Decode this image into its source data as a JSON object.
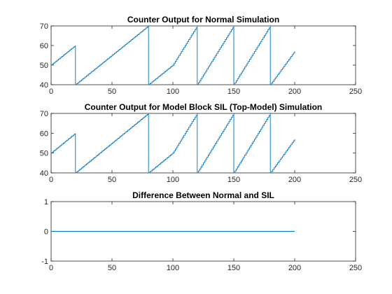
{
  "figure": {
    "background": "#ffffff",
    "axis_color": "#262626",
    "line_color": "#0072BD"
  },
  "chart_data": [
    {
      "type": "line",
      "title": "Counter Output for Normal Simulation",
      "xlabel": "",
      "ylabel": "",
      "xlim": [
        0,
        250
      ],
      "ylim": [
        40,
        70
      ],
      "xticks": [
        0,
        50,
        100,
        150,
        200,
        250
      ],
      "yticks": [
        40,
        50,
        60,
        70
      ],
      "grid": false,
      "legend": "none",
      "step": true,
      "series": [
        {
          "color": "#0072BD",
          "x": [
            0,
            20,
            20,
            80,
            80,
            100,
            120,
            120,
            150,
            150,
            180,
            180,
            200
          ],
          "y": [
            50,
            60,
            40,
            70,
            40,
            50,
            70,
            40,
            70,
            40,
            70,
            40,
            57
          ]
        }
      ]
    },
    {
      "type": "line",
      "title": "Counter Output for Model Block SIL (Top-Model) Simulation",
      "xlabel": "",
      "ylabel": "",
      "xlim": [
        0,
        250
      ],
      "ylim": [
        40,
        70
      ],
      "xticks": [
        0,
        50,
        100,
        150,
        200,
        250
      ],
      "yticks": [
        40,
        50,
        60,
        70
      ],
      "grid": false,
      "legend": "none",
      "step": true,
      "series": [
        {
          "color": "#0072BD",
          "x": [
            0,
            20,
            20,
            80,
            80,
            100,
            120,
            120,
            150,
            150,
            180,
            180,
            200
          ],
          "y": [
            50,
            60,
            40,
            70,
            40,
            50,
            70,
            40,
            70,
            40,
            70,
            40,
            57
          ]
        }
      ]
    },
    {
      "type": "line",
      "title": "Difference Between Normal and SIL",
      "xlabel": "",
      "ylabel": "",
      "xlim": [
        0,
        250
      ],
      "ylim": [
        -1,
        1
      ],
      "xticks": [
        0,
        50,
        100,
        150,
        200,
        250
      ],
      "yticks": [
        -1,
        0,
        1
      ],
      "grid": false,
      "legend": "none",
      "step": false,
      "series": [
        {
          "color": "#0072BD",
          "x": [
            0,
            200
          ],
          "y": [
            0,
            0
          ]
        }
      ]
    }
  ]
}
